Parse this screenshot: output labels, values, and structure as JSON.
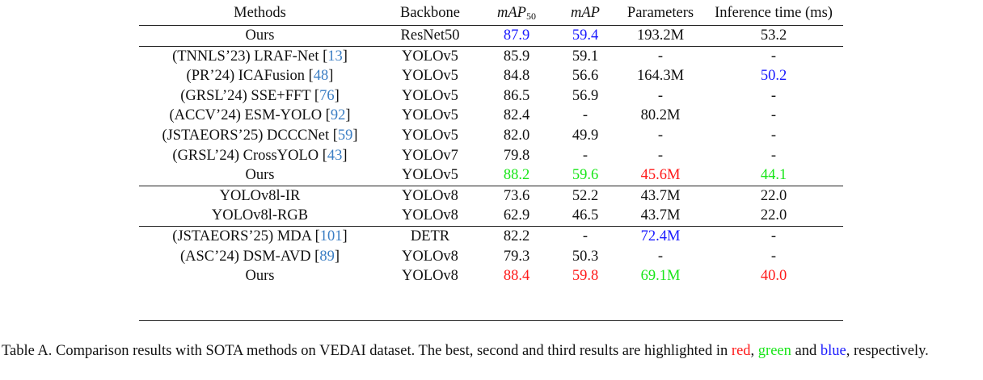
{
  "headers": {
    "methods": "Methods",
    "backbone": "Backbone",
    "map50_base": "mAP",
    "map50_sub": "50",
    "map": "mAP",
    "params": "Parameters",
    "time": "Inference time (ms)"
  },
  "sections": [
    [
      {
        "method": "Ours",
        "ref": "",
        "backbone": "ResNet50",
        "map50": "87.9",
        "map": "59.4",
        "params": "193.2M",
        "time": "53.2",
        "colors": {
          "map50": "blue",
          "map": "blue"
        }
      }
    ],
    [
      {
        "method": "(TNNLS’23) LRAF-Net [",
        "ref": "13",
        "backbone": "YOLOv5",
        "map50": "85.9",
        "map": "59.1",
        "params": "-",
        "time": "-",
        "colors": {}
      },
      {
        "method": "(PR’24) ICAFusion [",
        "ref": "48",
        "backbone": "YOLOv5",
        "map50": "84.8",
        "map": "56.6",
        "params": "164.3M",
        "time": "50.2",
        "colors": {
          "time": "blue"
        }
      },
      {
        "method": "(GRSL’24) SSE+FFT [",
        "ref": "76",
        "backbone": "YOLOv5",
        "map50": "86.5",
        "map": "56.9",
        "params": "-",
        "time": "-",
        "colors": {}
      },
      {
        "method": "(ACCV’24) ESM-YOLO [",
        "ref": "92",
        "backbone": "YOLOv5",
        "map50": "82.4",
        "map": "-",
        "params": "80.2M",
        "time": "-",
        "colors": {}
      },
      {
        "method": "(JSTAEORS’25) DCCCNet [",
        "ref": "59",
        "backbone": "YOLOv5",
        "map50": "82.0",
        "map": "49.9",
        "params": "-",
        "time": "-",
        "colors": {}
      },
      {
        "method": "(GRSL’24) CrossYOLO [",
        "ref": "43",
        "backbone": "YOLOv7",
        "map50": "79.8",
        "map": "-",
        "params": "-",
        "time": "-",
        "colors": {}
      },
      {
        "method": "Ours",
        "ref": "",
        "backbone": "YOLOv5",
        "map50": "88.2",
        "map": "59.6",
        "params": "45.6M",
        "time": "44.1",
        "colors": {
          "map50": "green",
          "map": "green",
          "params": "red",
          "time": "green"
        }
      }
    ],
    [
      {
        "method": "YOLOv8l-IR",
        "ref": "",
        "backbone": "YOLOv8",
        "map50": "73.6",
        "map": "52.2",
        "params": "43.7M",
        "time": "22.0",
        "colors": {}
      },
      {
        "method": "YOLOv8l-RGB",
        "ref": "",
        "backbone": "YOLOv8",
        "map50": "62.9",
        "map": "46.5",
        "params": "43.7M",
        "time": "22.0",
        "colors": {}
      }
    ],
    [
      {
        "method": "(JSTAEORS’25) MDA [",
        "ref": "101",
        "backbone": "DETR",
        "map50": "82.2",
        "map": "-",
        "params": "72.4M",
        "time": "-",
        "colors": {
          "params": "blue"
        }
      },
      {
        "method": "(ASC’24) DSM-AVD [",
        "ref": "89",
        "backbone": "YOLOv8",
        "map50": "79.3",
        "map": "50.3",
        "params": "-",
        "time": "-",
        "colors": {}
      },
      {
        "method": "Ours",
        "ref": "",
        "backbone": "YOLOv8",
        "map50": "88.4",
        "map": "59.8",
        "params": "69.1M",
        "time": "40.0",
        "colors": {
          "map50": "red",
          "map": "red",
          "params": "green",
          "time": "red"
        }
      }
    ]
  ],
  "caption": {
    "part1": "Table A. Comparison results with SOTA methods on VEDAI dataset. The best, second and third results are highlighted in ",
    "red_word": "red",
    "sep1": ", ",
    "green_word": "green",
    "sep2": " and ",
    "blue_word": "blue",
    "part2": ", respectively."
  },
  "highlight_colors": {
    "red": "#ff1a1a",
    "green": "#19e619",
    "blue": "#1a1aff",
    "ref": "#3b7ec4"
  }
}
